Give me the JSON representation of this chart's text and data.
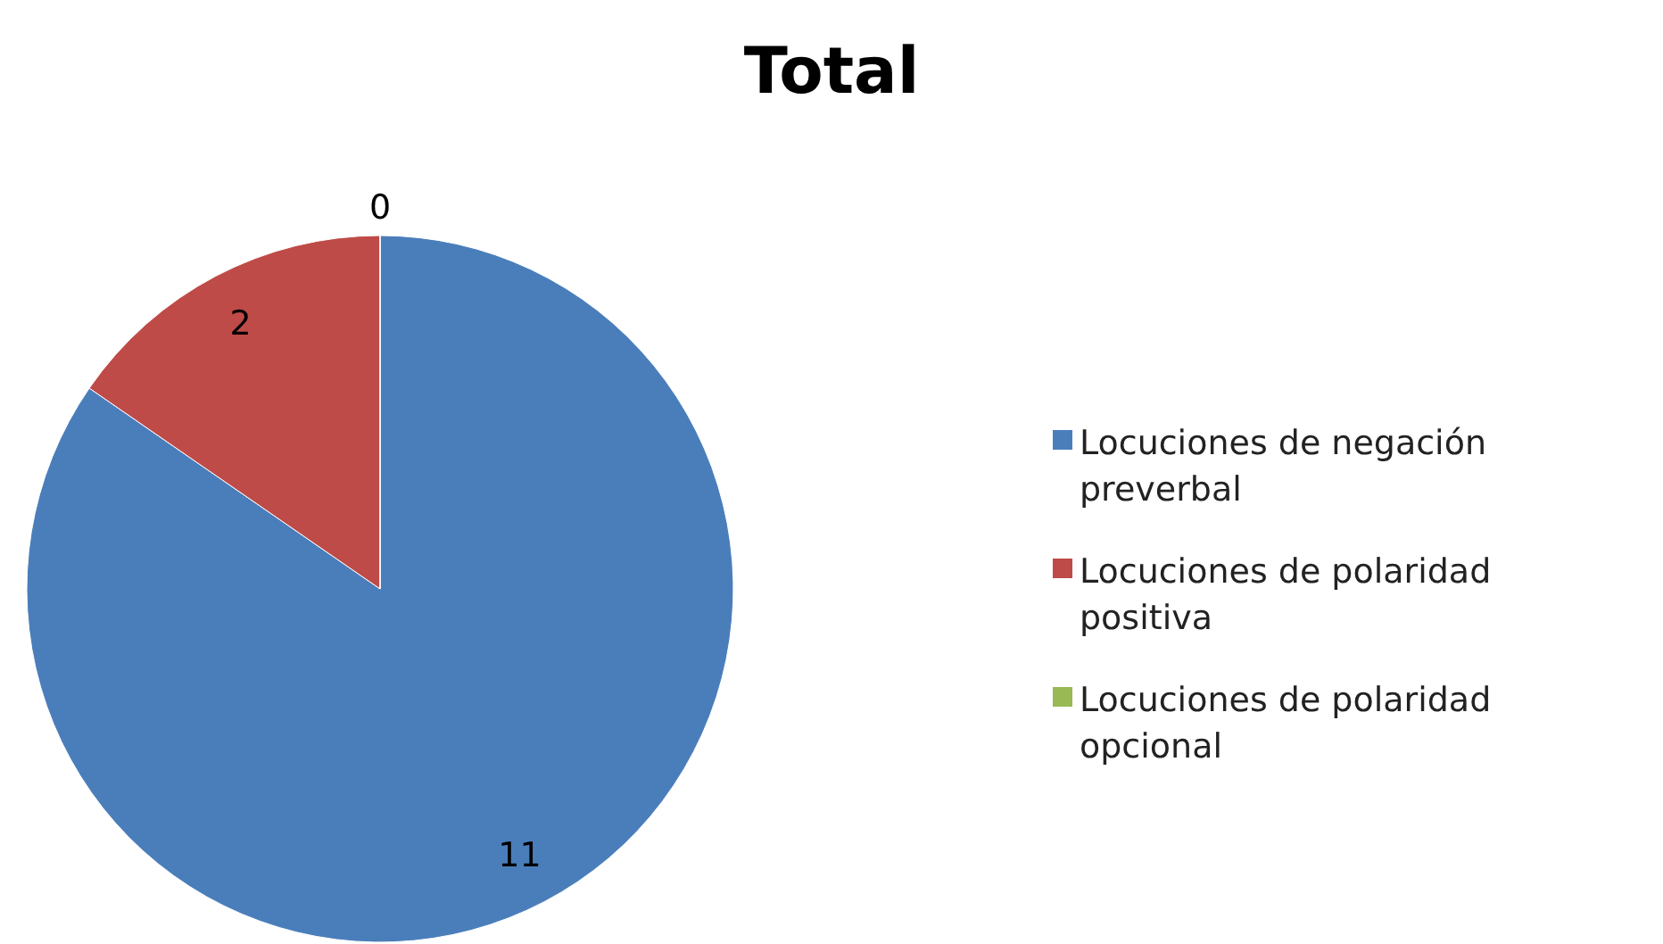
{
  "chart_data": {
    "type": "pie",
    "title": "Total",
    "categories": [
      "Locuciones de negación preverbal",
      "Locuciones de polaridad positiva",
      "Locuciones de polaridad opcional"
    ],
    "values": [
      11,
      2,
      0
    ],
    "colors": [
      "#4a7ebb",
      "#be4b48",
      "#98b954"
    ],
    "value_labels": [
      "11",
      "2",
      "0"
    ],
    "legend": "right"
  }
}
